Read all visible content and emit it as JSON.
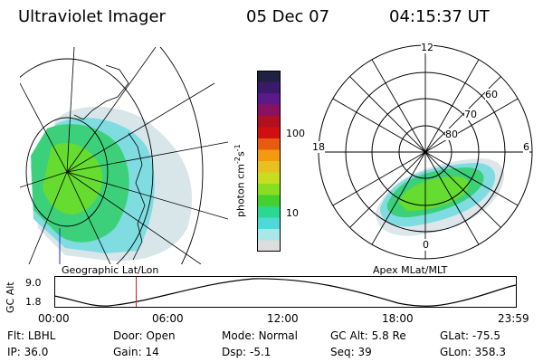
{
  "header": {
    "instrument": "Ultraviolet Imager",
    "date": "05 Dec 07",
    "time": "04:15:37 UT"
  },
  "colorbar": {
    "unit_label": "photon cm",
    "unit_exp1": "-2",
    "unit_s": "s",
    "unit_exp2": "-1",
    "tick_labels": [
      "100",
      "10"
    ],
    "scale": "log",
    "colors": [
      "#202040",
      "#3a1a6a",
      "#5a1a8a",
      "#8a1060",
      "#b01020",
      "#d01010",
      "#e85a10",
      "#f39a10",
      "#e8c020",
      "#c8dc20",
      "#8ade20",
      "#44d030",
      "#2ad890",
      "#50d8d8",
      "#a8e8e8",
      "#dddddd"
    ]
  },
  "left_panel": {
    "caption": "Geographic Lat/Lon"
  },
  "right_panel": {
    "caption": "Apex MLat/MLT",
    "mlt_labels": [
      "12",
      "18",
      "6",
      "0"
    ],
    "lat_labels": [
      "60",
      "70",
      "80"
    ]
  },
  "alt_plot": {
    "ylabel": "GC Alt",
    "yticks": [
      "9.0",
      "1.8"
    ],
    "xticks": [
      "00:00",
      "06:00",
      "12:00",
      "18:00",
      "23:59"
    ],
    "marker_time_hours": 4.26
  },
  "info": {
    "row1": [
      {
        "label": "Flt:",
        "value": "LBHL"
      },
      {
        "label": "Door:",
        "value": "Open"
      },
      {
        "label": "Mode:",
        "value": "Normal"
      },
      {
        "label": "GC Alt:",
        "value": "5.8 Re"
      },
      {
        "label": "GLat:",
        "value": "-75.5"
      }
    ],
    "row2": [
      {
        "label": "IP:",
        "value": "36.0"
      },
      {
        "label": "Gain:",
        "value": "14"
      },
      {
        "label": "Dsp:",
        "value": "-5.1"
      },
      {
        "label": "Seq:",
        "value": "39"
      },
      {
        "label": "GLon:",
        "value": "358.3"
      }
    ]
  }
}
